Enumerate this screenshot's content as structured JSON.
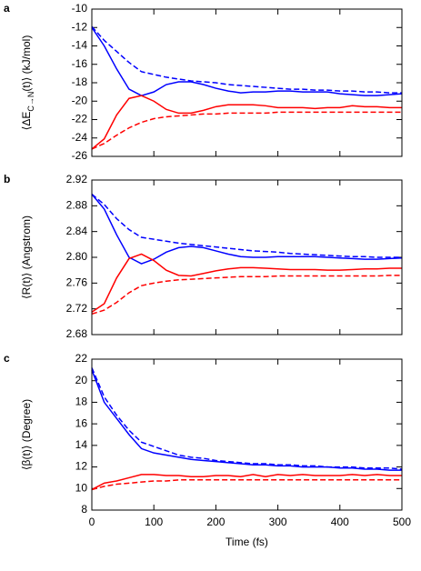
{
  "chart_data": [
    {
      "type": "line",
      "label": "a",
      "ylabel_parts": [
        "⟨ΔE",
        "C→N",
        "(t)⟩ (kJ/mol)"
      ],
      "x": [
        0,
        20,
        40,
        60,
        80,
        100,
        120,
        140,
        160,
        180,
        200,
        220,
        240,
        260,
        280,
        300,
        320,
        340,
        360,
        380,
        400,
        420,
        440,
        460,
        480,
        500
      ],
      "xlim": [
        0,
        500
      ],
      "xticks": [
        0,
        100,
        200,
        300,
        400,
        500
      ],
      "ylim": [
        -26,
        -10
      ],
      "yticks": [
        -26,
        -24,
        -22,
        -20,
        -18,
        -16,
        -14,
        -12,
        -10
      ],
      "series": [
        {
          "color": "#0000ff",
          "dash": false,
          "values": [
            -12,
            -14,
            -16.5,
            -18.7,
            -19.4,
            -19,
            -18.2,
            -17.9,
            -17.9,
            -18.2,
            -18.6,
            -18.9,
            -19.1,
            -19,
            -19,
            -18.9,
            -18.9,
            -19,
            -19,
            -19,
            -19.2,
            -19.3,
            -19.4,
            -19.4,
            -19.3,
            -19.2
          ]
        },
        {
          "color": "#0000ff",
          "dash": true,
          "values": [
            -11.9,
            -13.4,
            -14.6,
            -15.8,
            -16.8,
            -17.1,
            -17.4,
            -17.6,
            -17.8,
            -17.9,
            -18,
            -18.2,
            -18.3,
            -18.4,
            -18.5,
            -18.6,
            -18.7,
            -18.7,
            -18.8,
            -18.8,
            -18.9,
            -18.9,
            -19,
            -19,
            -19.1,
            -19.1
          ]
        },
        {
          "color": "#ff0000",
          "dash": false,
          "values": [
            -25.2,
            -24.1,
            -21.5,
            -19.7,
            -19.4,
            -20,
            -20.9,
            -21.3,
            -21.3,
            -21,
            -20.6,
            -20.4,
            -20.4,
            -20.4,
            -20.5,
            -20.7,
            -20.7,
            -20.7,
            -20.8,
            -20.7,
            -20.7,
            -20.5,
            -20.6,
            -20.6,
            -20.7,
            -20.7
          ]
        },
        {
          "color": "#ff0000",
          "dash": true,
          "values": [
            -25.2,
            -24.6,
            -23.7,
            -22.9,
            -22.3,
            -21.9,
            -21.7,
            -21.6,
            -21.5,
            -21.4,
            -21.4,
            -21.3,
            -21.3,
            -21.3,
            -21.3,
            -21.2,
            -21.2,
            -21.2,
            -21.2,
            -21.2,
            -21.2,
            -21.2,
            -21.2,
            -21.2,
            -21.2,
            -21.2
          ]
        }
      ]
    },
    {
      "type": "line",
      "label": "b",
      "ylabel_parts": [
        "⟨R(t)⟩ (Angstrom)"
      ],
      "x": [
        0,
        20,
        40,
        60,
        80,
        100,
        120,
        140,
        160,
        180,
        200,
        220,
        240,
        260,
        280,
        300,
        320,
        340,
        360,
        380,
        400,
        420,
        440,
        460,
        480,
        500
      ],
      "xlim": [
        0,
        500
      ],
      "xticks": [
        0,
        100,
        200,
        300,
        400,
        500
      ],
      "ylim": [
        2.68,
        2.92
      ],
      "yticks": [
        2.68,
        2.72,
        2.76,
        {
          "value": 2.8,
          "label": "2.80"
        },
        2.84,
        2.88,
        2.92
      ],
      "series": [
        {
          "color": "#0000ff",
          "dash": false,
          "values": [
            2.898,
            2.875,
            2.835,
            2.8,
            2.79,
            2.797,
            2.808,
            2.815,
            2.817,
            2.815,
            2.81,
            2.805,
            2.801,
            2.8,
            2.8,
            2.801,
            2.801,
            2.801,
            2.801,
            2.8,
            2.799,
            2.798,
            2.797,
            2.797,
            2.798,
            2.799
          ]
        },
        {
          "color": "#0000ff",
          "dash": true,
          "values": [
            2.898,
            2.882,
            2.86,
            2.843,
            2.831,
            2.828,
            2.825,
            2.822,
            2.82,
            2.818,
            2.816,
            2.814,
            2.812,
            2.81,
            2.809,
            2.808,
            2.806,
            2.805,
            2.804,
            2.803,
            2.802,
            2.801,
            2.801,
            2.8,
            2.8,
            2.8
          ]
        },
        {
          "color": "#ff0000",
          "dash": false,
          "values": [
            2.715,
            2.728,
            2.768,
            2.798,
            2.805,
            2.795,
            2.78,
            2.772,
            2.771,
            2.775,
            2.779,
            2.782,
            2.784,
            2.784,
            2.783,
            2.782,
            2.781,
            2.781,
            2.781,
            2.78,
            2.78,
            2.781,
            2.782,
            2.782,
            2.783,
            2.783
          ]
        },
        {
          "color": "#ff0000",
          "dash": true,
          "values": [
            2.712,
            2.718,
            2.73,
            2.745,
            2.756,
            2.76,
            2.763,
            2.765,
            2.766,
            2.767,
            2.768,
            2.769,
            2.77,
            2.77,
            2.77,
            2.771,
            2.771,
            2.771,
            2.771,
            2.771,
            2.771,
            2.771,
            2.771,
            2.771,
            2.772,
            2.772
          ]
        }
      ]
    },
    {
      "type": "line",
      "label": "c",
      "ylabel_parts": [
        "⟨β(t)⟩ (Degree)"
      ],
      "xlabel": "Time (fs)",
      "x": [
        0,
        20,
        40,
        60,
        80,
        100,
        120,
        140,
        160,
        180,
        200,
        220,
        240,
        260,
        280,
        300,
        320,
        340,
        360,
        380,
        400,
        420,
        440,
        460,
        480,
        500
      ],
      "xlim": [
        0,
        500
      ],
      "xticks": [
        0,
        100,
        200,
        300,
        400,
        500
      ],
      "ylim": [
        8,
        22
      ],
      "yticks": [
        8,
        10,
        12,
        14,
        16,
        18,
        20,
        22
      ],
      "series": [
        {
          "color": "#0000ff",
          "dash": false,
          "values": [
            21,
            18,
            16.5,
            15,
            13.7,
            13.3,
            13.1,
            12.9,
            12.7,
            12.6,
            12.5,
            12.4,
            12.3,
            12.2,
            12.2,
            12.1,
            12.1,
            12,
            12,
            12,
            11.9,
            11.9,
            11.8,
            11.8,
            11.7,
            11.7
          ]
        },
        {
          "color": "#0000ff",
          "dash": true,
          "values": [
            21.2,
            18.5,
            16.8,
            15.4,
            14.3,
            13.9,
            13.5,
            13.1,
            12.9,
            12.8,
            12.6,
            12.5,
            12.4,
            12.3,
            12.3,
            12.2,
            12.2,
            12.1,
            12.1,
            12,
            12,
            12,
            11.9,
            11.9,
            11.9,
            11.8
          ]
        },
        {
          "color": "#ff0000",
          "dash": false,
          "values": [
            9.9,
            10.5,
            10.7,
            11,
            11.3,
            11.3,
            11.2,
            11.2,
            11.1,
            11.1,
            11.2,
            11.2,
            11.1,
            11.3,
            11.1,
            11.3,
            11.2,
            11.3,
            11.2,
            11.2,
            11.2,
            11.3,
            11.2,
            11.3,
            11.2,
            11.2
          ]
        },
        {
          "color": "#ff0000",
          "dash": true,
          "values": [
            9.9,
            10.2,
            10.4,
            10.5,
            10.6,
            10.7,
            10.7,
            10.8,
            10.8,
            10.8,
            10.8,
            10.8,
            10.8,
            10.8,
            10.8,
            10.8,
            10.8,
            10.8,
            10.8,
            10.8,
            10.8,
            10.8,
            10.8,
            10.8,
            10.8,
            10.8
          ]
        }
      ]
    }
  ]
}
